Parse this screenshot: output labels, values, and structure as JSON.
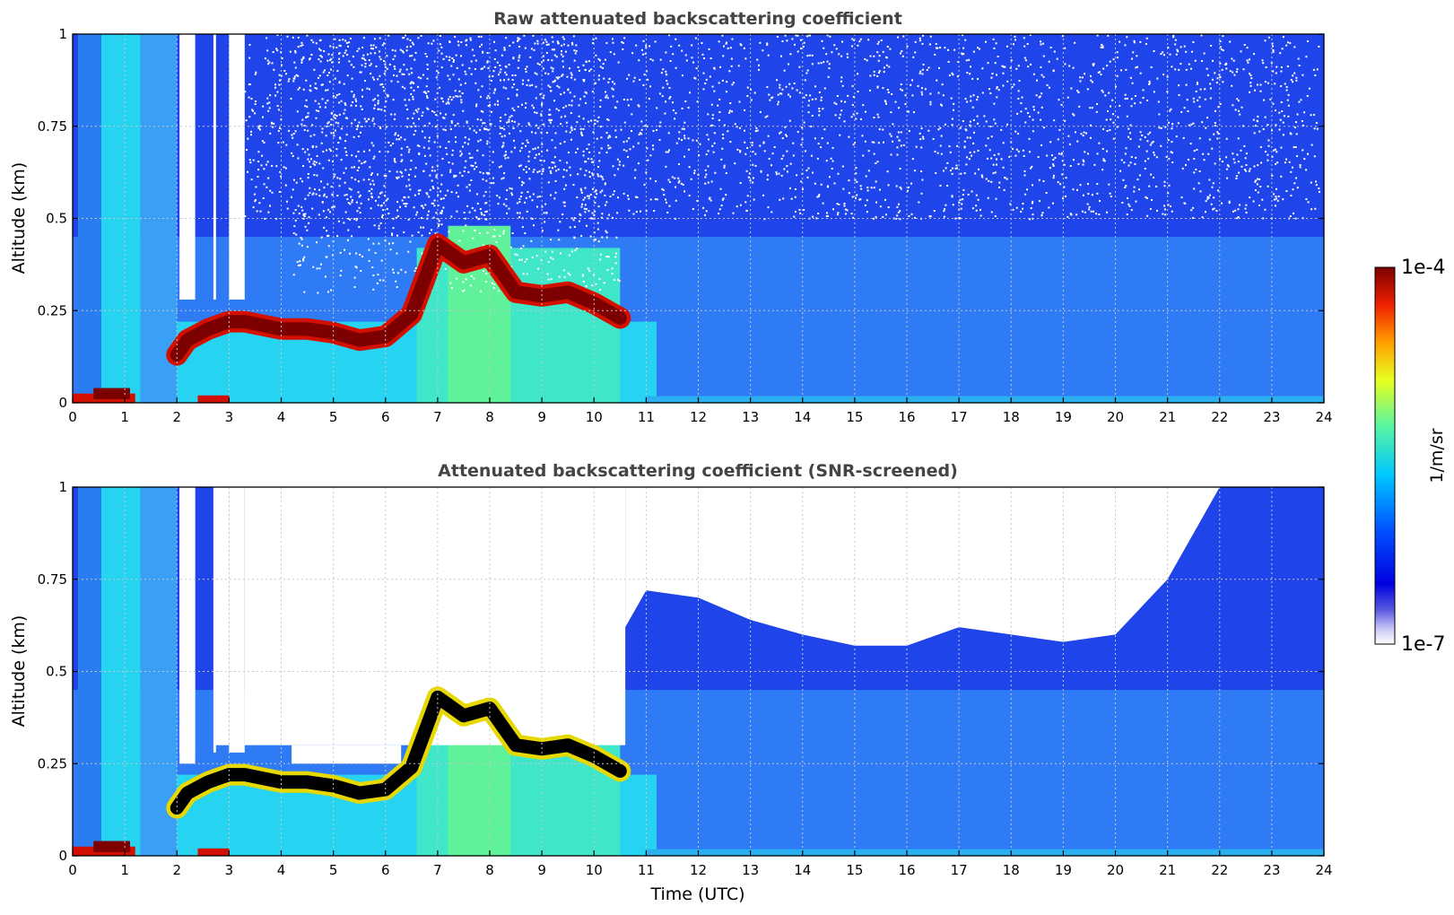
{
  "chart_data": [
    {
      "type": "heatmap",
      "title": "Raw attenuated backscattering coefficient",
      "xlabel": "",
      "ylabel": "Altitude (km)",
      "xlim": [
        0,
        24
      ],
      "ylim": [
        0,
        1
      ],
      "xticks": [
        0,
        1,
        2,
        3,
        4,
        5,
        6,
        7,
        8,
        9,
        10,
        11,
        12,
        13,
        14,
        15,
        16,
        17,
        18,
        19,
        20,
        21,
        22,
        23,
        24
      ],
      "yticks": [
        0,
        0.25,
        0.5,
        0.75,
        1
      ],
      "ytick_labels": [
        "0",
        "0.25",
        "0.5",
        "0.75",
        "1"
      ],
      "grid": true,
      "cloud_layer": {
        "description_time_utc": [
          2.0,
          2.2,
          2.6,
          3.0,
          3.3,
          4.0,
          4.5,
          5.0,
          5.5,
          6.0,
          6.5,
          7.0,
          7.5,
          8.0,
          8.5,
          9.0,
          9.5,
          10.0,
          10.5
        ],
        "altitude_km": [
          0.13,
          0.17,
          0.2,
          0.22,
          0.22,
          0.2,
          0.2,
          0.19,
          0.17,
          0.18,
          0.24,
          0.43,
          0.38,
          0.4,
          0.3,
          0.29,
          0.3,
          0.27,
          0.23
        ]
      },
      "noise_top_altitude_km": 0.5
    },
    {
      "type": "heatmap",
      "title": "Attenuated backscattering coefficient (SNR-screened)",
      "xlabel": "Time (UTC)",
      "ylabel": "Altitude (km)",
      "xlim": [
        0,
        24
      ],
      "ylim": [
        0,
        1
      ],
      "xticks": [
        0,
        1,
        2,
        3,
        4,
        5,
        6,
        7,
        8,
        9,
        10,
        11,
        12,
        13,
        14,
        15,
        16,
        17,
        18,
        19,
        20,
        21,
        22,
        23,
        24
      ],
      "yticks": [
        0,
        0.25,
        0.5,
        0.75,
        1
      ],
      "ytick_labels": [
        "0",
        "0.25",
        "0.5",
        "0.75",
        "1"
      ],
      "grid": true,
      "boundary_layer_top": {
        "time_utc": [
          10.6,
          11,
          12,
          13,
          14,
          15,
          16,
          17,
          18,
          19,
          20,
          21,
          22,
          23,
          23.9
        ],
        "altitude_km": [
          0.62,
          0.72,
          0.7,
          0.64,
          0.6,
          0.57,
          0.57,
          0.62,
          0.6,
          0.58,
          0.6,
          0.75,
          1.0,
          1.0,
          1.0
        ]
      }
    }
  ],
  "colorbar": {
    "label": "1/m/sr",
    "max_label": "1e-4",
    "min_label": "1e-7",
    "scale": "log",
    "colormap": "jet",
    "range": [
      1e-07,
      0.0001
    ]
  },
  "colors": {
    "bg_blue": "#1032e8",
    "mid_blue": "#2f7af5",
    "cyan": "#26d3f0",
    "green": "#60f29a",
    "red": "#d31000",
    "dark_red": "#7d0000",
    "black": "#000000"
  }
}
